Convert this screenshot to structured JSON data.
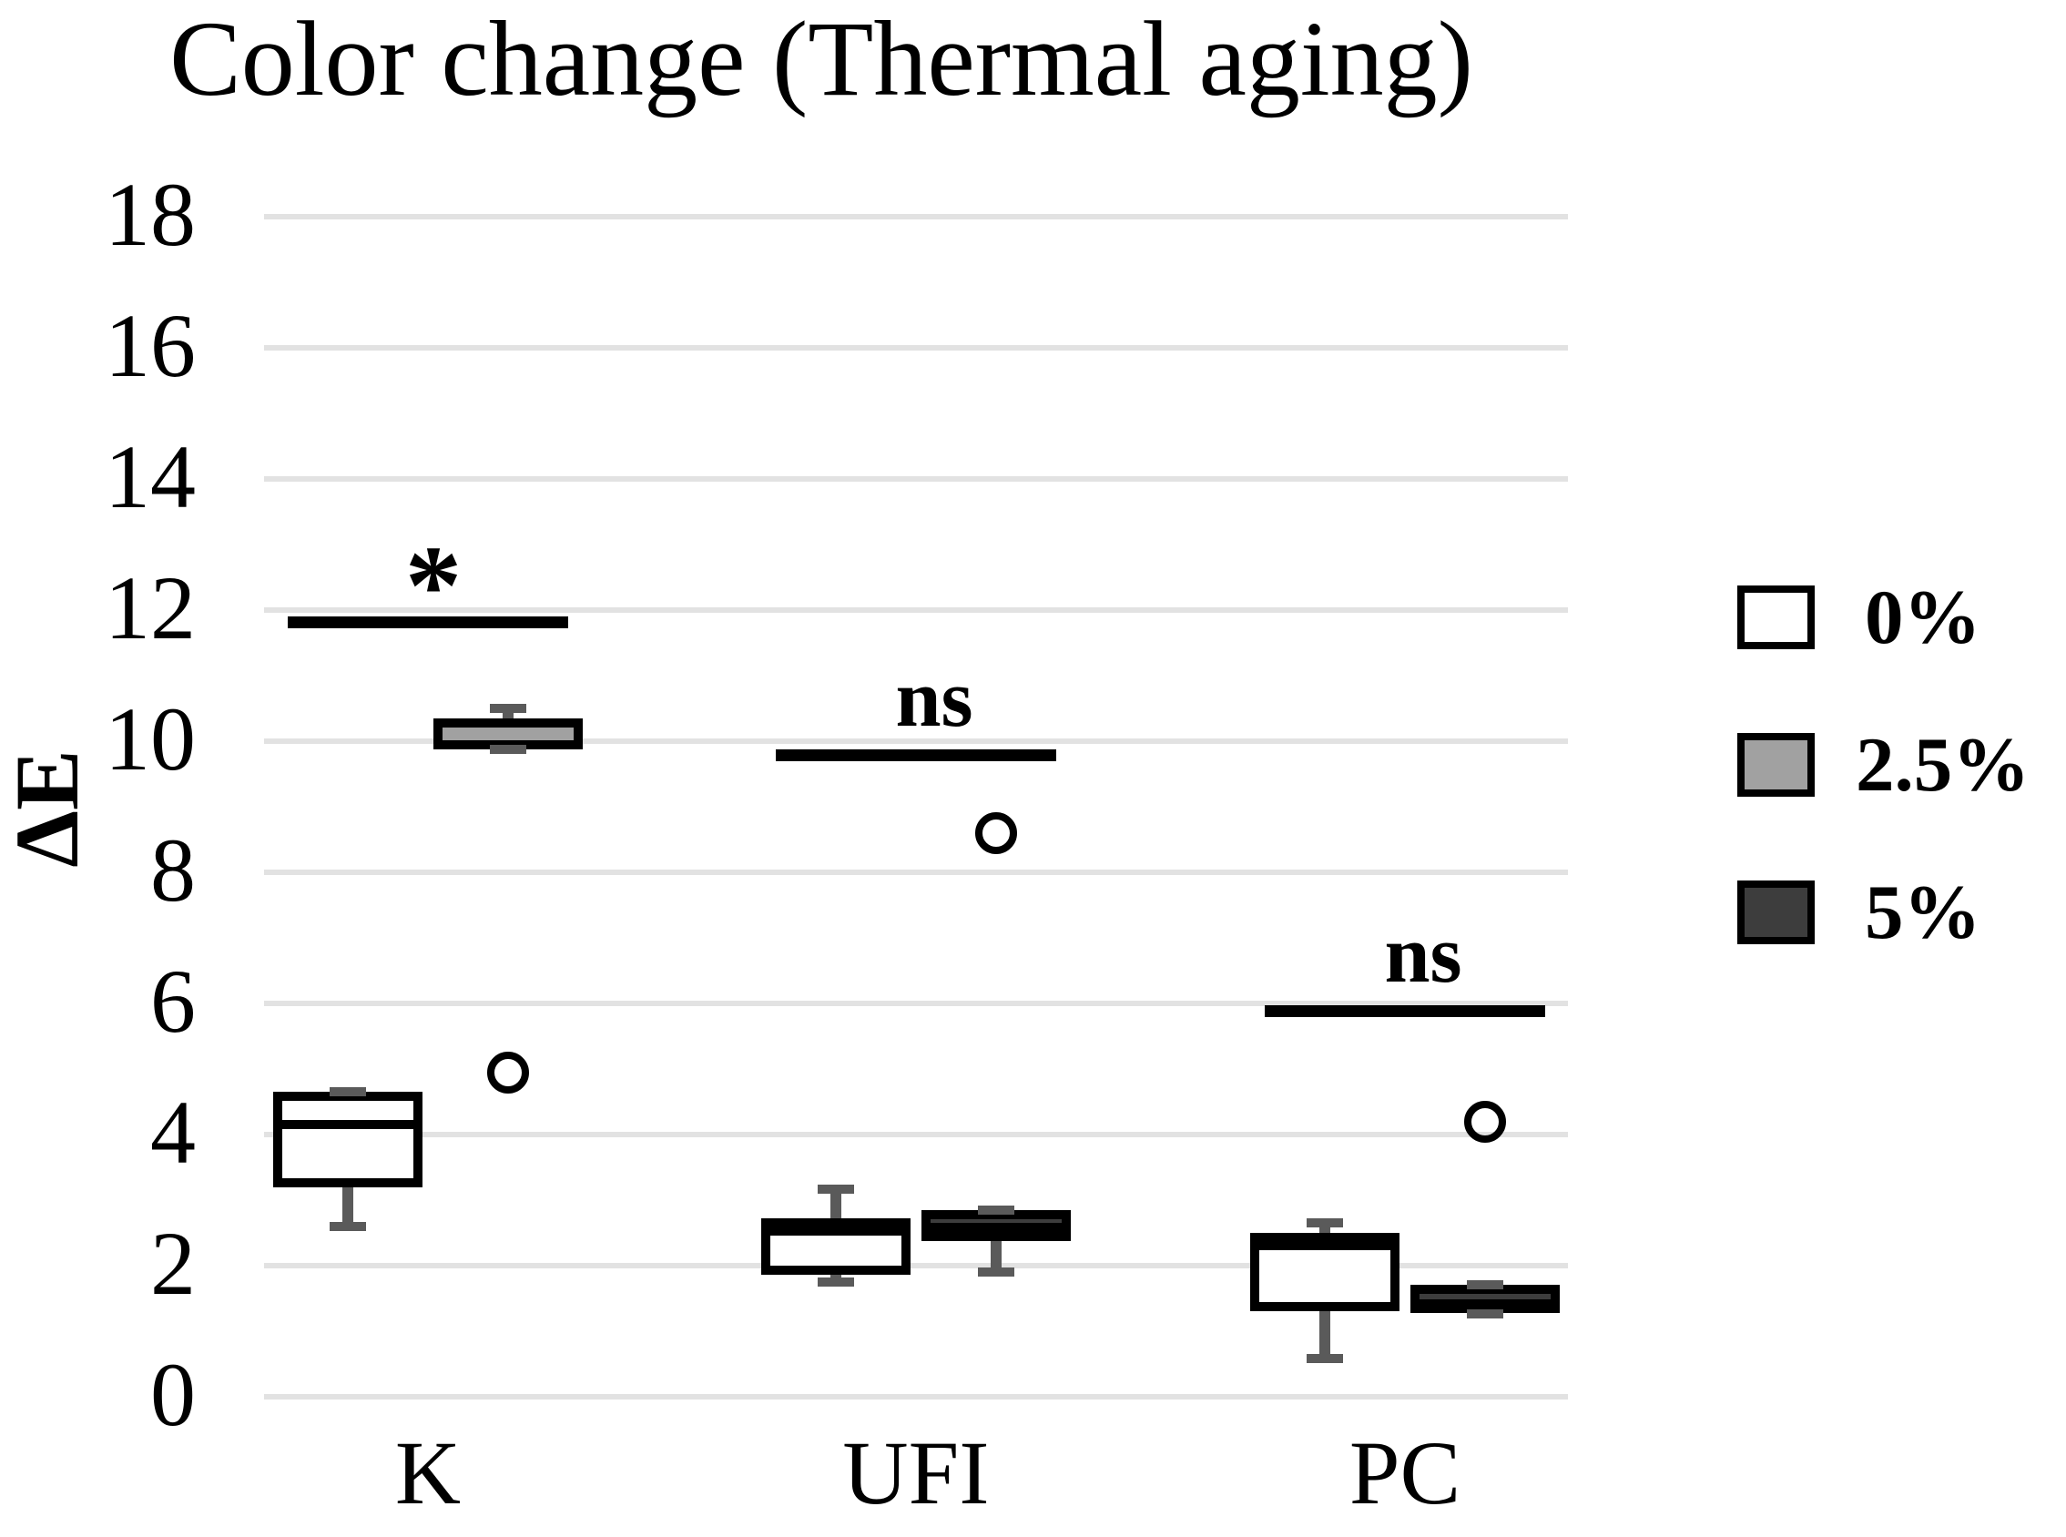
{
  "chart_data": {
    "type": "boxplot",
    "title": "Color change (Thermal aging)",
    "ylabel": "ΔE",
    "ylim": [
      0,
      18
    ],
    "ytick_interval": 2,
    "yticks": [
      0,
      2,
      4,
      6,
      8,
      10,
      12,
      14,
      16,
      18
    ],
    "grid": true,
    "legend_position": "right",
    "categories": [
      "K",
      "UFI",
      "PC"
    ],
    "series_names": [
      "0%",
      "2.5%",
      "5%"
    ],
    "groups": [
      {
        "category": "K",
        "significance": {
          "label": "*",
          "bar_y": 11.8
        },
        "boxes": [
          {
            "series": "0%",
            "fill": "#ffffff",
            "stats": {
              "whisker_low": 2.6,
              "q1": 3.2,
              "median": 4.15,
              "q3": 4.65,
              "whisker_high": 4.65
            },
            "outliers": []
          },
          {
            "series": "2.5%",
            "fill": "#a1a1a1",
            "stats": {
              "whisker_low": 9.88,
              "q1": 9.88,
              "median": 9.95,
              "q3": 10.35,
              "whisker_high": 10.5
            },
            "outliers": [
              4.95
            ]
          }
        ]
      },
      {
        "category": "UFI",
        "significance": {
          "label": "ns",
          "bar_y": 9.78
        },
        "boxes": [
          {
            "series": "0%",
            "fill": "#ffffff",
            "stats": {
              "whisker_low": 1.75,
              "q1": 1.86,
              "median": 2.53,
              "q3": 2.72,
              "whisker_high": 3.17
            },
            "outliers": []
          },
          {
            "series": "5%",
            "fill": "#3d3d3d",
            "stats": {
              "whisker_low": 1.9,
              "q1": 2.38,
              "median": 2.58,
              "q3": 2.85,
              "whisker_high": 2.85
            },
            "outliers": [
              8.6
            ]
          }
        ]
      },
      {
        "category": "PC",
        "significance": {
          "label": "ns",
          "bar_y": 5.87
        },
        "boxes": [
          {
            "series": "0%",
            "fill": "#ffffff",
            "stats": {
              "whisker_low": 0.58,
              "q1": 1.3,
              "median": 2.3,
              "q3": 2.5,
              "whisker_high": 2.65
            },
            "outliers": []
          },
          {
            "series": "5%",
            "fill": "#3d3d3d",
            "stats": {
              "whisker_low": 1.26,
              "q1": 1.28,
              "median": 1.42,
              "q3": 1.71,
              "whisker_high": 1.71
            },
            "outliers": [
              4.2
            ]
          }
        ]
      }
    ]
  },
  "legend": {
    "items": [
      {
        "label": "0%",
        "fill": "#ffffff"
      },
      {
        "label": "2.5%",
        "fill": "#a1a1a1"
      },
      {
        "label": "5%",
        "fill": "#3d3d3d"
      }
    ]
  },
  "colors": {
    "box_border": "#000000",
    "median": "#000000",
    "whisker": "#5a5a5a",
    "gridline": "#e2e2e2",
    "outlier_ring": "#000000",
    "significance_bar": "#000000",
    "text": "#000000"
  }
}
